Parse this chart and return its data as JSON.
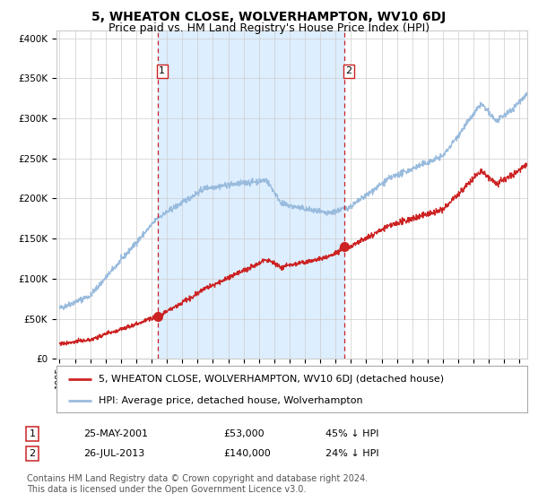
{
  "title": "5, WHEATON CLOSE, WOLVERHAMPTON, WV10 6DJ",
  "subtitle": "Price paid vs. HM Land Registry's House Price Index (HPI)",
  "background_color": "#ffffff",
  "plot_bg_color": "#ffffff",
  "shaded_region_color": "#ddeeff",
  "grid_color": "#cccccc",
  "hpi_line_color": "#99bbdd",
  "price_line_color": "#cc2222",
  "sale1_date_num": 2001.39,
  "sale1_price": 53000,
  "sale2_date_num": 2013.56,
  "sale2_price": 140000,
  "ylim": [
    0,
    410000
  ],
  "xlim": [
    1994.8,
    2025.5
  ],
  "legend_label_price": "5, WHEATON CLOSE, WOLVERHAMPTON, WV10 6DJ (detached house)",
  "legend_label_hpi": "HPI: Average price, detached house, Wolverhampton",
  "annotation1_label": "1",
  "annotation1_date": "25-MAY-2001",
  "annotation1_price_str": "£53,000",
  "annotation1_hpi": "45% ↓ HPI",
  "annotation2_label": "2",
  "annotation2_date": "26-JUL-2013",
  "annotation2_price_str": "£140,000",
  "annotation2_hpi": "24% ↓ HPI",
  "footer": "Contains HM Land Registry data © Crown copyright and database right 2024.\nThis data is licensed under the Open Government Licence v3.0.",
  "title_fontsize": 10,
  "subtitle_fontsize": 9,
  "axis_fontsize": 7.5,
  "legend_fontsize": 8,
  "annotation_fontsize": 8,
  "footer_fontsize": 7
}
